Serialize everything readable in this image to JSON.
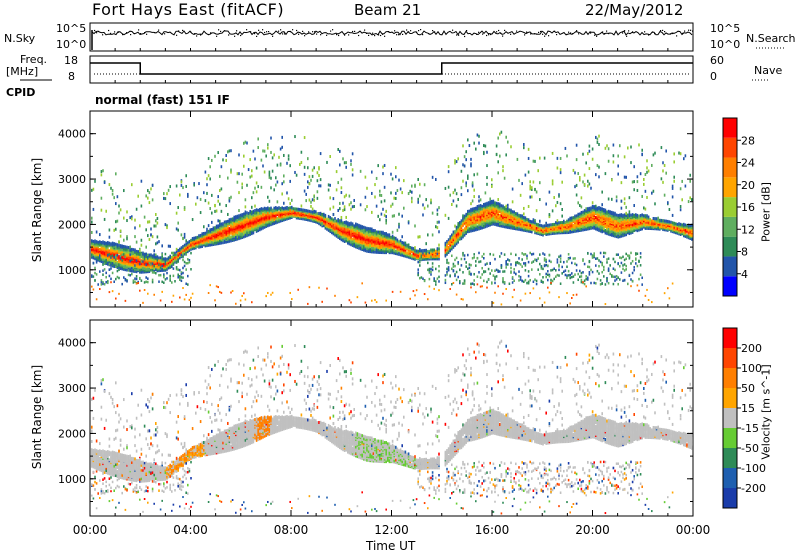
{
  "header": {
    "station": "Fort Hays East (fitACF)",
    "beam": "Beam 21",
    "date": "22/May/2012"
  },
  "panels": {
    "nsky": {
      "label": "N.Sky",
      "right_label": "N.Search",
      "yticks_left": [
        "10^5",
        "10^0"
      ],
      "yticks_right": [
        "10^5",
        "10^0"
      ]
    },
    "freq": {
      "label_line1": "Freq.",
      "label_line2": "[MHz]",
      "right_label": "Nave",
      "yticks_left": [
        "18",
        "8"
      ],
      "yticks_right": [
        "60",
        "0"
      ]
    },
    "cpid": {
      "label": "CPID",
      "text": "normal (fast) 151 IF"
    }
  },
  "colors": {
    "power": [
      "#0000ff",
      "#2255aa",
      "#2e8b57",
      "#5fae5f",
      "#9acd32",
      "#ffa500",
      "#ff7f00",
      "#ff4500",
      "#ff0000"
    ],
    "velocity": [
      "#1a3caa",
      "#1e5fb0",
      "#2e8b57",
      "#66cc33",
      "#c0c0c0",
      "#ffa500",
      "#ff7f00",
      "#ff4500",
      "#ff0000"
    ]
  },
  "chart_data": [
    {
      "type": "heatmap",
      "name": "power",
      "ylabel": "Slant Range [km]",
      "yticks": [
        1000,
        2000,
        3000,
        4000
      ],
      "ylim": [
        180,
        4500
      ],
      "colorbar": {
        "label": "Power [dB]",
        "ticks": [
          "28",
          "24",
          "20",
          "16",
          "12",
          "8",
          "4"
        ],
        "range": [
          0,
          32
        ]
      },
      "echo_band_center_km": {
        "x_hours": [
          0,
          1,
          2,
          3,
          4,
          5,
          6,
          7,
          8,
          9,
          10,
          11,
          12,
          13,
          14,
          15,
          16,
          17,
          18,
          19,
          20,
          21,
          22,
          23,
          24
        ],
        "range_km": [
          1500,
          1350,
          1200,
          1150,
          1600,
          1800,
          2000,
          2200,
          2300,
          2200,
          1900,
          1700,
          1600,
          1350,
          1400,
          2100,
          2300,
          2100,
          1900,
          2000,
          2200,
          2000,
          2100,
          2000,
          1850
        ]
      }
    },
    {
      "type": "heatmap",
      "name": "velocity",
      "ylabel": "Slant Range [km]",
      "yticks": [
        1000,
        2000,
        3000,
        4000
      ],
      "ylim": [
        180,
        4500
      ],
      "colorbar": {
        "label": "Velocity [m s^-1]",
        "ticks": [
          "200",
          "100",
          "50",
          "15",
          "-15",
          "-50",
          "-100",
          "-200"
        ],
        "range": [
          -250,
          250
        ]
      }
    }
  ],
  "xaxis": {
    "label": "Time UT",
    "ticks": [
      "00:00",
      "04:00",
      "08:00",
      "12:00",
      "16:00",
      "20:00",
      "00:00"
    ]
  }
}
